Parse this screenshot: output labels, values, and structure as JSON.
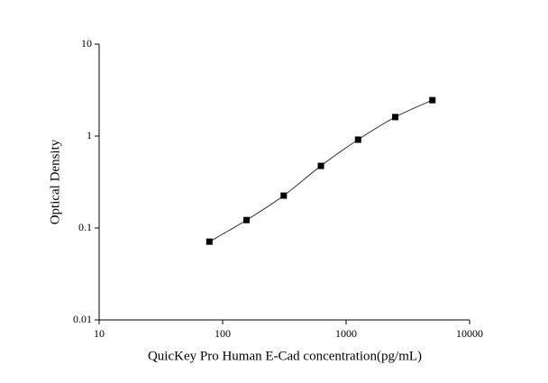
{
  "chart_data": {
    "type": "scatter",
    "xlabel": "QuicKey Pro Human E-Cad concentration(pg/mL)",
    "ylabel": "Optical Density",
    "xscale": "log",
    "yscale": "log",
    "xlim": [
      10,
      10000
    ],
    "xticks": [
      10,
      100,
      1000,
      10000
    ],
    "ylim": [
      0.01,
      10
    ],
    "yticks": [
      0.01,
      0.1,
      1,
      10
    ],
    "series": [
      {
        "color": "#000000",
        "x": [
          78.125,
          156.25,
          312.5,
          625,
          1250,
          2500,
          5000
        ],
        "values": [
          0.071,
          0.122,
          0.225,
          0.474,
          0.914,
          1.61,
          2.46
        ]
      }
    ]
  }
}
